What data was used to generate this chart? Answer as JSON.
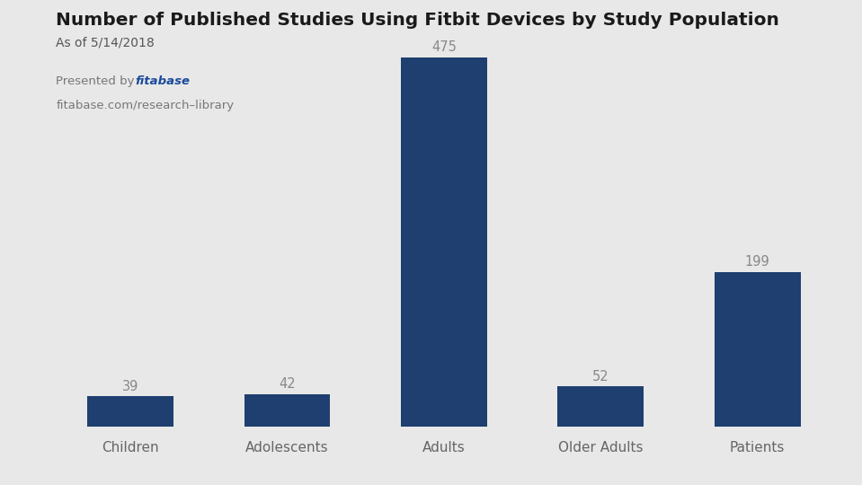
{
  "categories": [
    "Children",
    "Adolescents",
    "Adults",
    "Older Adults",
    "Patients"
  ],
  "values": [
    39,
    42,
    475,
    52,
    199
  ],
  "bar_color": "#1E3F6F",
  "background_color": "#E8E8E8",
  "title": "Number of Published Studies Using Fitbit Devices by Study Population",
  "subtitle": "As of 5/14/2018",
  "presented_by_plain": "Presented by ",
  "presented_by_brand": "fitabase",
  "brand_color": "#1A4A9C",
  "footer": "fitabase.com/research–library",
  "title_fontsize": 14.5,
  "subtitle_fontsize": 10,
  "label_fontsize": 11,
  "value_fontsize": 10.5,
  "value_color": "#888888",
  "axis_label_color": "#666666",
  "ylim": [
    0,
    530
  ]
}
